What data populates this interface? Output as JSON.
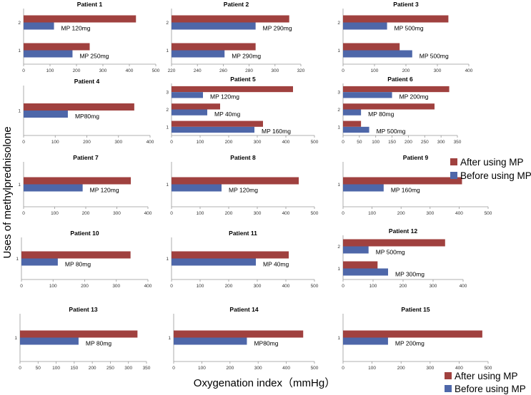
{
  "figure": {
    "xlabel": "Oxygenation index（mmHg）",
    "ylabel": "Uses of methylprednisolone"
  },
  "colors": {
    "after": "#A0413F",
    "before": "#4E67A9",
    "axis": "#999999",
    "tick_text": "#333333"
  },
  "legends": [
    {
      "items": [
        {
          "label": "After using MP",
          "series": "after"
        },
        {
          "label": "Before using MP",
          "series": "before"
        }
      ]
    },
    {
      "items": [
        {
          "label": "After using MP",
          "series": "after"
        },
        {
          "label": "Before using MP",
          "series": "before"
        }
      ]
    }
  ],
  "chart_data": [
    {
      "type": "bar",
      "title": "Patient 1",
      "xlim": [
        0,
        500
      ],
      "xticks": [
        0,
        100,
        200,
        300,
        400,
        500
      ],
      "categories": [
        "1",
        "2"
      ],
      "series": [
        {
          "name": "After using MP",
          "values": [
            250,
            425
          ]
        },
        {
          "name": "Before using MP",
          "values": [
            185,
            115
          ]
        }
      ],
      "annotations": [
        "MP 250mg",
        "MP 120mg"
      ]
    },
    {
      "type": "bar",
      "title": "Patient 2",
      "xlim": [
        220,
        320
      ],
      "xticks": [
        220,
        240,
        260,
        280,
        300,
        320
      ],
      "categories": [
        "1",
        "2"
      ],
      "series": [
        {
          "name": "After using MP",
          "values": [
            285,
            311
          ]
        },
        {
          "name": "Before using MP",
          "values": [
            261,
            285
          ]
        }
      ],
      "annotations": [
        "MP 290mg",
        "MP 290mg"
      ]
    },
    {
      "type": "bar",
      "title": "Patient 3",
      "xlim": [
        0,
        400
      ],
      "xticks": [
        0,
        100,
        200,
        300,
        400
      ],
      "categories": [
        "1",
        "2"
      ],
      "series": [
        {
          "name": "After using MP",
          "values": [
            180,
            335
          ]
        },
        {
          "name": "Before using MP",
          "values": [
            220,
            140
          ]
        }
      ],
      "annotations": [
        "MP 500mg",
        "MP 500mg"
      ]
    },
    {
      "type": "bar",
      "title": "Patient 4",
      "xlim": [
        0,
        400
      ],
      "xticks": [
        0,
        100,
        200,
        300,
        400
      ],
      "categories": [
        "1"
      ],
      "series": [
        {
          "name": "After using MP",
          "values": [
            350
          ]
        },
        {
          "name": "Before using MP",
          "values": [
            140
          ]
        }
      ],
      "annotations": [
        "MP80mg"
      ]
    },
    {
      "type": "bar",
      "title": "Patient 5",
      "xlim": [
        0,
        500
      ],
      "xticks": [
        0,
        100,
        200,
        300,
        400,
        500
      ],
      "categories": [
        "1",
        "2",
        "3"
      ],
      "series": [
        {
          "name": "After using MP",
          "values": [
            320,
            170,
            425
          ]
        },
        {
          "name": "Before using MP",
          "values": [
            290,
            125,
            110
          ]
        }
      ],
      "annotations": [
        "MP 160mg",
        "MP 40mg",
        "MP 120mg"
      ]
    },
    {
      "type": "bar",
      "title": "Patient 6",
      "xlim": [
        0,
        350
      ],
      "xticks": [
        0,
        50,
        100,
        150,
        200,
        250,
        300,
        350
      ],
      "categories": [
        "1",
        "2",
        "3"
      ],
      "series": [
        {
          "name": "After using MP",
          "values": [
            55,
            280,
            325
          ]
        },
        {
          "name": "Before using MP",
          "values": [
            80,
            55,
            150
          ]
        }
      ],
      "annotations": [
        "MP 500mg",
        "MP 80mg",
        "MP 200mg"
      ]
    },
    {
      "type": "bar",
      "title": "Patient 7",
      "xlim": [
        0,
        400
      ],
      "xticks": [
        0,
        100,
        200,
        300,
        400
      ],
      "categories": [
        "1"
      ],
      "series": [
        {
          "name": "After using MP",
          "values": [
            345
          ]
        },
        {
          "name": "Before using MP",
          "values": [
            190
          ]
        }
      ],
      "annotations": [
        "MP 120mg"
      ]
    },
    {
      "type": "bar",
      "title": "Patient 8",
      "xlim": [
        0,
        500
      ],
      "xticks": [
        0,
        100,
        200,
        300,
        400,
        500
      ],
      "categories": [
        "1"
      ],
      "series": [
        {
          "name": "After using MP",
          "values": [
            445
          ]
        },
        {
          "name": "Before using MP",
          "values": [
            175
          ]
        }
      ],
      "annotations": [
        "MP 120mg"
      ]
    },
    {
      "type": "bar",
      "title": "Patient 9",
      "xlim": [
        0,
        500
      ],
      "xticks": [
        0,
        100,
        200,
        300,
        400,
        500
      ],
      "categories": [
        "1"
      ],
      "series": [
        {
          "name": "After using MP",
          "values": [
            410
          ]
        },
        {
          "name": "Before using MP",
          "values": [
            140
          ]
        }
      ],
      "annotations": [
        "MP 160mg"
      ]
    },
    {
      "type": "bar",
      "title": "Patient 10",
      "xlim": [
        0,
        400
      ],
      "xticks": [
        0,
        100,
        200,
        300,
        400
      ],
      "categories": [
        "1"
      ],
      "series": [
        {
          "name": "After using MP",
          "values": [
            345
          ]
        },
        {
          "name": "Before using MP",
          "values": [
            115
          ]
        }
      ],
      "annotations": [
        "MP 80mg"
      ]
    },
    {
      "type": "bar",
      "title": "Patient 11",
      "xlim": [
        0,
        500
      ],
      "xticks": [
        0,
        100,
        200,
        300,
        400,
        500
      ],
      "categories": [
        "1"
      ],
      "series": [
        {
          "name": "After using MP",
          "values": [
            410
          ]
        },
        {
          "name": "Before using MP",
          "values": [
            295
          ]
        }
      ],
      "annotations": [
        "MP 40mg"
      ]
    },
    {
      "type": "bar",
      "title": "Patient 12",
      "xlim": [
        0,
        400
      ],
      "xticks": [
        0,
        100,
        200,
        300,
        400
      ],
      "categories": [
        "1",
        "2"
      ],
      "series": [
        {
          "name": "After using MP",
          "values": [
            115,
            340
          ]
        },
        {
          "name": "Before using MP",
          "values": [
            150,
            85
          ]
        }
      ],
      "annotations": [
        "MP 300mg",
        "MP 500mg"
      ]
    },
    {
      "type": "bar",
      "title": "Patient 13",
      "xlim": [
        0,
        350
      ],
      "xticks": [
        0,
        50,
        100,
        150,
        200,
        250,
        300,
        350
      ],
      "categories": [
        "1"
      ],
      "series": [
        {
          "name": "After using MP",
          "values": [
            325
          ]
        },
        {
          "name": "Before using MP",
          "values": [
            162
          ]
        }
      ],
      "annotations": [
        "MP 80mg"
      ]
    },
    {
      "type": "bar",
      "title": "Patient 14",
      "xlim": [
        0,
        500
      ],
      "xticks": [
        0,
        100,
        200,
        300,
        400,
        500
      ],
      "categories": [
        "1"
      ],
      "series": [
        {
          "name": "After using MP",
          "values": [
            460
          ]
        },
        {
          "name": "Before using MP",
          "values": [
            260
          ]
        }
      ],
      "annotations": [
        "MP80mg"
      ]
    },
    {
      "type": "bar",
      "title": "Patient 15",
      "xlim": [
        0,
        500
      ],
      "xticks": [
        0,
        100,
        200,
        300,
        400,
        500
      ],
      "categories": [
        "1"
      ],
      "series": [
        {
          "name": "After using MP",
          "values": [
            480
          ]
        },
        {
          "name": "Before using MP",
          "values": [
            155
          ]
        }
      ],
      "annotations": [
        "MP 200mg"
      ]
    }
  ]
}
